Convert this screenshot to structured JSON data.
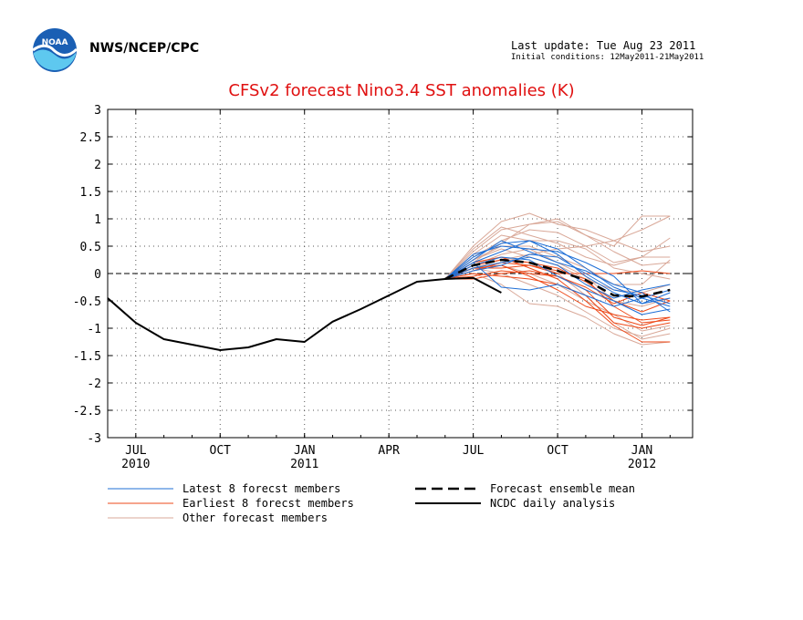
{
  "header": {
    "org": "NWS/NCEP/CPC",
    "last_update": "Last update: Tue Aug 23 2011",
    "initial_conditions": "Initial conditions: 12May2011-21May2011"
  },
  "logo_text": "NOAA",
  "colors": {
    "title": "#e01010",
    "latest": "#1f6fd6",
    "earliest": "#ee4a1a",
    "other": "#d9a898",
    "mean": "#000000",
    "analysis": "#000000"
  },
  "chart_data": {
    "type": "line",
    "title": "CFSv2 forecast Nino3.4 SST anomalies (K)",
    "xlabel": "",
    "ylabel": "",
    "x_unit": "month index (0 = Jul 2010)",
    "xlim": [
      -1,
      19.8
    ],
    "ylim": [
      -3,
      3
    ],
    "yticks": [
      3,
      2.5,
      2,
      1.5,
      1,
      0.5,
      0,
      -0.5,
      -1,
      -1.5,
      -2,
      -2.5,
      -3
    ],
    "ytick_labels": [
      "3",
      "2.5",
      "2",
      "1.5",
      "1",
      "0.5",
      "0",
      "-0.5",
      "-1",
      "-1.5",
      "-2",
      "-2.5",
      "-3"
    ],
    "xticks": [
      {
        "x": 0,
        "label": "JUL",
        "year": "2010"
      },
      {
        "x": 3,
        "label": "OCT",
        "year": ""
      },
      {
        "x": 6,
        "label": "JAN",
        "year": "2011"
      },
      {
        "x": 9,
        "label": "APR",
        "year": ""
      },
      {
        "x": 12,
        "label": "JUL",
        "year": ""
      },
      {
        "x": 15,
        "label": "OCT",
        "year": ""
      },
      {
        "x": 18,
        "label": "JAN",
        "year": "2012"
      }
    ],
    "grid": true,
    "zero_line": true,
    "legend": {
      "latest": "Latest 8 forecst members",
      "earliest": "Earliest 8 forecst members",
      "other": "Other forecast members",
      "mean": "Forecast ensemble mean",
      "analysis": "NCDC daily analysis"
    },
    "analysis": {
      "x": [
        -1,
        0,
        1,
        2,
        3,
        4,
        5,
        6,
        7,
        8,
        9,
        10,
        11,
        12,
        13
      ],
      "y": [
        -0.45,
        -0.9,
        -1.2,
        -1.3,
        -1.4,
        -1.35,
        -1.2,
        -1.25,
        -0.88,
        -0.65,
        -0.4,
        -0.15,
        -0.1,
        -0.08,
        -0.35
      ]
    },
    "ensemble_mean": {
      "x": [
        11,
        12,
        13,
        14,
        15,
        16,
        17,
        18,
        19
      ],
      "y": [
        -0.1,
        0.15,
        0.25,
        0.2,
        0.05,
        -0.12,
        -0.4,
        -0.42,
        -0.3
      ]
    },
    "forecast_x": [
      11,
      12,
      13,
      14,
      15,
      16,
      17,
      18,
      19
    ],
    "latest_members": [
      [
        -0.1,
        0.3,
        0.55,
        0.6,
        0.45,
        0.1,
        -0.25,
        -0.45,
        -0.6
      ],
      [
        -0.1,
        0.2,
        0.4,
        0.6,
        0.35,
        -0.05,
        -0.35,
        -0.55,
        -0.35
      ],
      [
        -0.1,
        0.25,
        0.6,
        0.4,
        0.2,
        0.05,
        -0.2,
        -0.35,
        -0.7
      ],
      [
        -0.1,
        0.1,
        0.2,
        0.3,
        0.15,
        -0.2,
        -0.45,
        -0.3,
        -0.2
      ],
      [
        -0.1,
        0.35,
        0.5,
        0.45,
        0.4,
        0.2,
        -0.05,
        -0.55,
        -0.45
      ],
      [
        -0.1,
        0.15,
        0.3,
        0.25,
        -0.05,
        -0.3,
        -0.5,
        -0.75,
        -0.65
      ],
      [
        -0.1,
        0.05,
        0.15,
        0.35,
        0.3,
        0.0,
        -0.3,
        -0.4,
        -0.55
      ],
      [
        -0.1,
        0.2,
        -0.25,
        -0.3,
        -0.2,
        -0.4,
        -0.6,
        -0.45,
        -0.3
      ]
    ],
    "earliest_members": [
      [
        -0.1,
        0.1,
        0.1,
        0.15,
        0.05,
        -0.1,
        -0.6,
        -0.9,
        -0.85
      ],
      [
        -0.1,
        -0.05,
        0.05,
        0.0,
        -0.05,
        -0.3,
        -0.8,
        -0.95,
        -0.8
      ],
      [
        -0.1,
        0.15,
        0.25,
        0.2,
        0.1,
        -0.15,
        -0.5,
        -0.7,
        -0.5
      ],
      [
        -0.1,
        0.0,
        -0.05,
        -0.1,
        -0.2,
        -0.4,
        -0.9,
        -1.0,
        -0.9
      ],
      [
        -0.1,
        0.05,
        0.2,
        0.15,
        0.0,
        0.0,
        0.0,
        0.05,
        0.0
      ],
      [
        -0.1,
        0.2,
        0.3,
        0.1,
        -0.1,
        -0.5,
        -0.95,
        -1.25,
        -1.25
      ],
      [
        -0.1,
        -0.1,
        0.0,
        0.05,
        -0.05,
        -0.25,
        -0.55,
        -0.35,
        -0.5
      ],
      [
        -0.1,
        0.1,
        0.15,
        -0.05,
        -0.3,
        -0.6,
        -0.75,
        -0.85,
        -0.8
      ]
    ],
    "other_members": [
      [
        -0.1,
        0.5,
        0.95,
        1.1,
        0.9,
        0.8,
        0.6,
        0.8,
        1.05
      ],
      [
        -0.1,
        0.4,
        0.8,
        0.9,
        1.0,
        0.7,
        0.5,
        1.05,
        1.05
      ],
      [
        -0.1,
        0.3,
        0.6,
        0.8,
        0.75,
        0.5,
        0.2,
        0.3,
        0.65
      ],
      [
        -0.1,
        0.25,
        0.5,
        0.5,
        0.3,
        0.1,
        -0.2,
        -0.2,
        0.25
      ],
      [
        -0.1,
        0.2,
        0.3,
        0.2,
        0.0,
        -0.4,
        -0.9,
        -1.2,
        -1.1
      ],
      [
        -0.1,
        0.0,
        -0.2,
        -0.55,
        -0.6,
        -0.8,
        -1.1,
        -1.3,
        -1.25
      ],
      [
        -0.1,
        0.1,
        0.0,
        -0.2,
        -0.4,
        -0.7,
        -1.0,
        -1.15,
        -1.0
      ],
      [
        -0.1,
        0.35,
        0.7,
        0.6,
        0.6,
        0.45,
        0.1,
        0.0,
        -0.1
      ],
      [
        -0.1,
        0.15,
        0.35,
        0.45,
        0.2,
        -0.05,
        -0.5,
        -0.6,
        -0.45
      ],
      [
        -0.1,
        0.05,
        0.15,
        0.0,
        -0.2,
        -0.5,
        -0.75,
        -1.05,
        -0.95
      ],
      [
        -0.1,
        0.45,
        0.85,
        0.7,
        0.55,
        0.3,
        0.15,
        0.3,
        0.3
      ],
      [
        -0.1,
        0.25,
        0.45,
        0.3,
        0.15,
        -0.1,
        -0.3,
        -0.35,
        -0.2
      ],
      [
        -0.1,
        0.1,
        0.25,
        0.35,
        0.45,
        0.5,
        0.6,
        0.4,
        0.5
      ],
      [
        -0.1,
        0.2,
        0.55,
        0.9,
        0.95,
        0.7,
        0.4,
        0.15,
        0.2
      ]
    ]
  }
}
